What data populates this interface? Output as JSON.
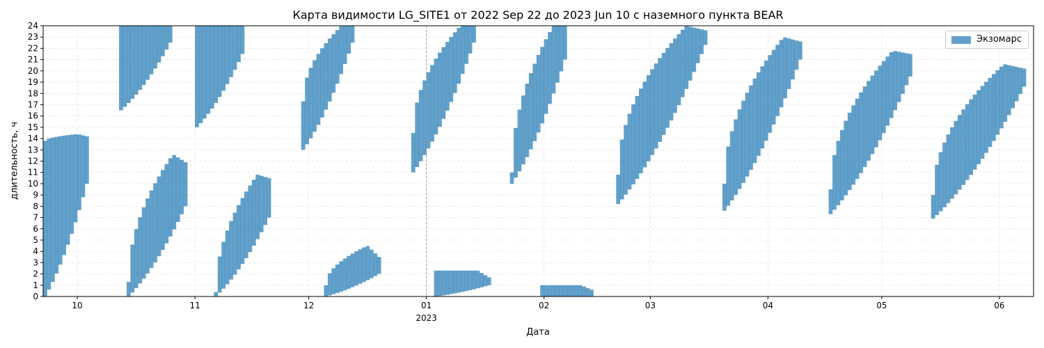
{
  "chart_data": {
    "type": "bar",
    "title": "Карта видимости LG_SITE1 от 2022 Sep 22 до 2023 Jun 10 с наземного пункта BEAR",
    "xlabel": "Дата",
    "ylabel": "длительность, ч",
    "x_range": [
      "2022-09-22",
      "2023-06-10"
    ],
    "ylim": [
      0,
      24
    ],
    "y_ticks": [
      "0",
      "1",
      "2",
      "3",
      "4",
      "5",
      "6",
      "7",
      "8",
      "9",
      "10",
      "11",
      "12",
      "13",
      "14",
      "15",
      "16",
      "17",
      "18",
      "19",
      "20",
      "21",
      "22",
      "23",
      "24"
    ],
    "x_ticks": [
      {
        "date": "2022-10-01",
        "label": "10"
      },
      {
        "date": "2022-11-01",
        "label": "11"
      },
      {
        "date": "2022-12-01",
        "label": "12"
      },
      {
        "date": "2023-01-01",
        "label": "01",
        "sublabel": "2023"
      },
      {
        "date": "2023-02-01",
        "label": "02"
      },
      {
        "date": "2023-03-01",
        "label": "03"
      },
      {
        "date": "2023-04-01",
        "label": "04"
      },
      {
        "date": "2023-05-01",
        "label": "05"
      },
      {
        "date": "2023-06-01",
        "label": "06"
      }
    ],
    "vline_date": "2023-01-01",
    "grid": true,
    "legend_position": "top-right",
    "series": [
      {
        "name": "Экзомарс",
        "color": "#1f77b4",
        "opacity": 0.7,
        "bands": [
          {
            "start": "2022-09-22",
            "end": "2022-10-03",
            "top_start": 13.8,
            "top_peak": 14.4,
            "top_end": 14.2,
            "bot_start": 0.0,
            "bot_end": 10.0
          },
          {
            "start": "2022-10-12",
            "end": "2022-10-25",
            "top_start": 24.0,
            "top_peak": 24.0,
            "top_end": 24.0,
            "bot_start": 16.5,
            "bot_end": 22.5
          },
          {
            "start": "2022-10-14",
            "end": "2022-10-29",
            "top_start": 1.3,
            "top_peak": 12.6,
            "top_end": 11.9,
            "bot_start": 0.0,
            "bot_end": 8.0
          },
          {
            "start": "2022-11-01",
            "end": "2022-11-13",
            "top_start": 24.0,
            "top_peak": 24.0,
            "top_end": 24.0,
            "bot_start": 15.0,
            "bot_end": 21.5
          },
          {
            "start": "2022-11-06",
            "end": "2022-11-20",
            "top_start": 0.4,
            "top_peak": 10.8,
            "top_end": 10.5,
            "bot_start": 0.0,
            "bot_end": 7.0
          },
          {
            "start": "2022-11-29",
            "end": "2022-12-12",
            "top_start": 17.3,
            "top_peak": 24.0,
            "top_end": 24.0,
            "bot_start": 13.0,
            "bot_end": 22.5
          },
          {
            "start": "2022-12-05",
            "end": "2022-12-19",
            "top_start": 1.0,
            "top_peak": 4.5,
            "top_end": 3.5,
            "bot_start": 0.0,
            "bot_end": 2.0
          },
          {
            "start": "2022-12-28",
            "end": "2023-01-13",
            "top_start": 14.5,
            "top_peak": 24.0,
            "top_end": 24.0,
            "bot_start": 11.0,
            "bot_end": 22.5
          },
          {
            "start": "2023-01-03",
            "end": "2023-01-17",
            "top_start": 2.3,
            "top_peak": 2.3,
            "top_end": 1.7,
            "bot_start": 0.0,
            "bot_end": 1.0
          },
          {
            "start": "2023-01-23",
            "end": "2023-02-06",
            "top_start": 11.0,
            "top_peak": 24.0,
            "top_end": 24.0,
            "bot_start": 10.0,
            "bot_end": 21.0
          },
          {
            "start": "2023-01-31",
            "end": "2023-02-13",
            "top_start": 1.0,
            "top_peak": 1.0,
            "top_end": 0.6,
            "bot_start": 0.0,
            "bot_end": 0.0
          },
          {
            "start": "2023-02-20",
            "end": "2023-03-15",
            "top_start": 10.8,
            "top_peak": 24.0,
            "top_end": 23.6,
            "bot_start": 8.2,
            "bot_end": 22.3
          },
          {
            "start": "2023-03-20",
            "end": "2023-04-09",
            "top_start": 10.0,
            "top_peak": 23.0,
            "top_end": 22.6,
            "bot_start": 7.6,
            "bot_end": 21.0
          },
          {
            "start": "2023-04-17",
            "end": "2023-05-08",
            "top_start": 9.5,
            "top_peak": 21.8,
            "top_end": 21.5,
            "bot_start": 7.3,
            "bot_end": 19.5
          },
          {
            "start": "2023-05-14",
            "end": "2023-06-07",
            "top_start": 9.0,
            "top_peak": 20.6,
            "top_end": 20.2,
            "bot_start": 6.9,
            "bot_end": 18.6
          }
        ]
      }
    ]
  }
}
